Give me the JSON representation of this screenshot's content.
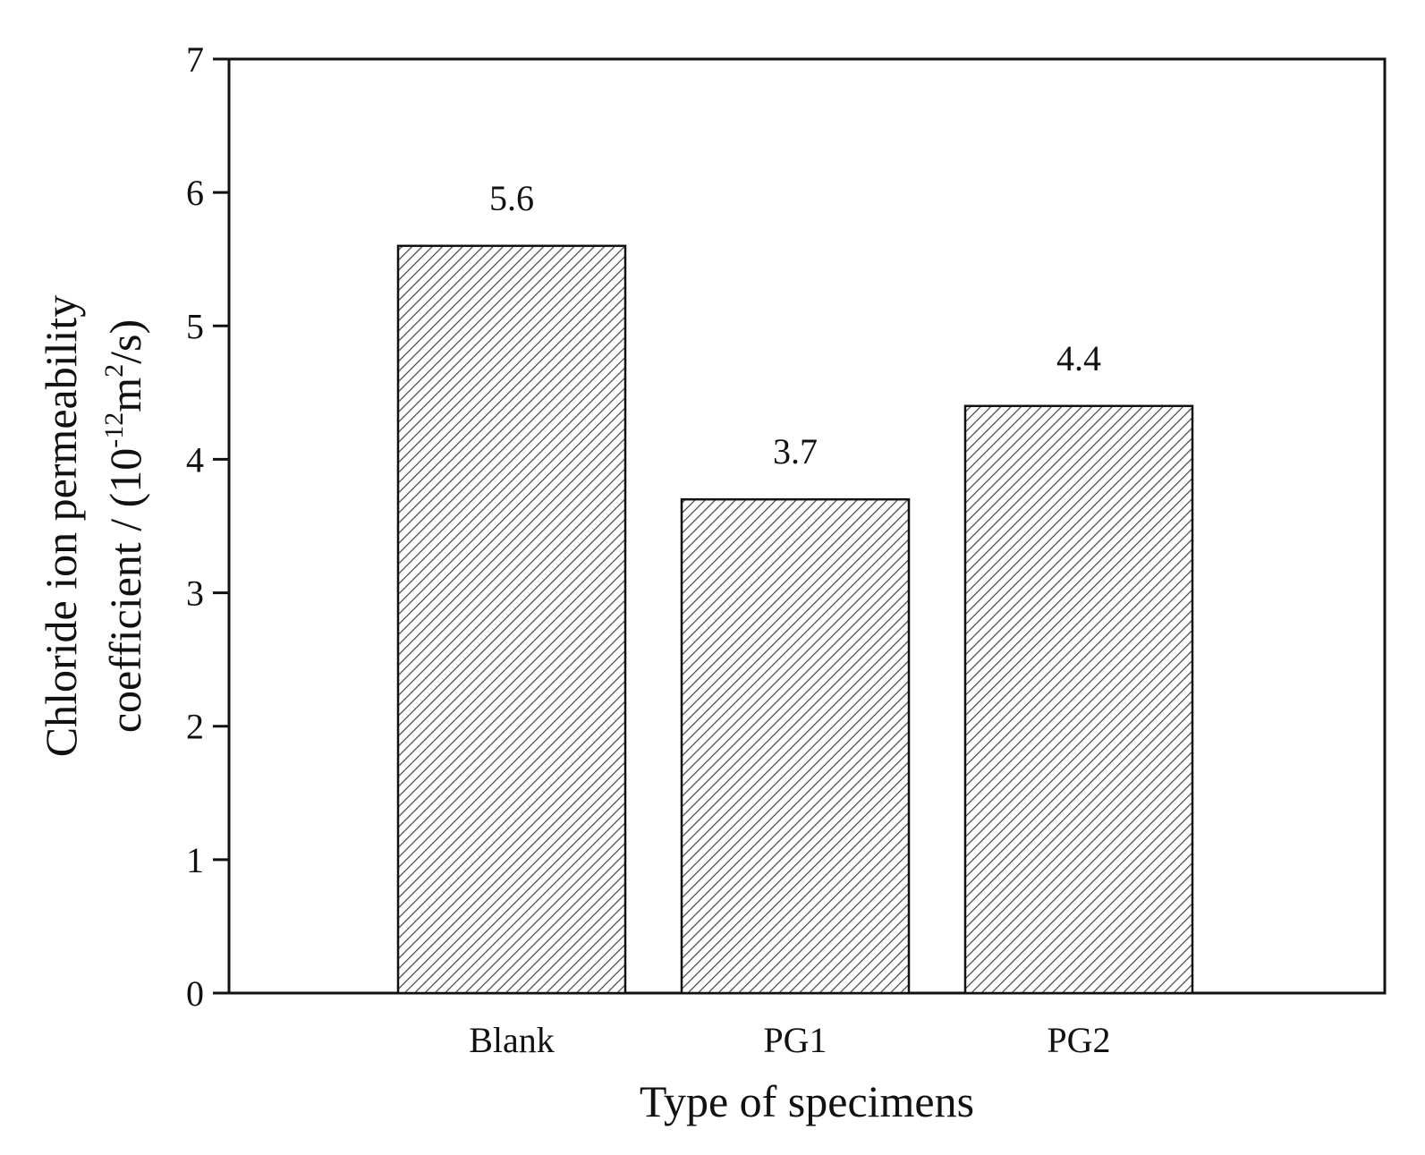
{
  "chart_data": {
    "type": "bar",
    "categories": [
      "Blank",
      "PG1",
      "PG2"
    ],
    "values": [
      5.6,
      3.7,
      4.4
    ],
    "data_labels": [
      "5.6",
      "3.7",
      "4.4"
    ],
    "xlabel": "Type of specimens",
    "ylabel_line1": "Chloride ion permeability",
    "ylabel_line2_prefix": "coefficient / (10",
    "ylabel_exp1": "-12",
    "ylabel_mid": "m",
    "ylabel_exp2": "2",
    "ylabel_suffix": "/s)",
    "ylim": [
      0,
      7
    ],
    "yticks": [
      "0",
      "1",
      "2",
      "3",
      "4",
      "5",
      "6",
      "7"
    ],
    "grid": false,
    "legend": "none",
    "bar_fill": "hatched",
    "bar_color": "#ffffff",
    "hatch_color": "#444444",
    "edge_color": "#111111"
  }
}
